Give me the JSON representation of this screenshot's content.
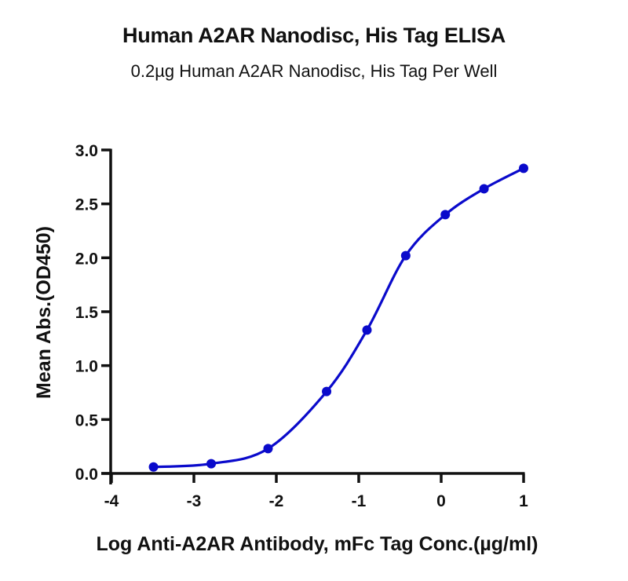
{
  "header": {
    "title": "Human A2AR Nanodisc, His Tag ELISA",
    "subtitle": "0.2µg Human A2AR Nanodisc, His Tag Per Well"
  },
  "colors": {
    "series": "#0A0ACB",
    "axis": "#111111"
  },
  "chart_data": {
    "type": "line",
    "title": "Human A2AR Nanodisc, His Tag ELISA",
    "subtitle": "0.2µg Human A2AR Nanodisc, His Tag Per Well",
    "xlabel": "Log Anti-A2AR Antibody, mFc Tag Conc.(µg/ml)",
    "ylabel": "Mean Abs.(OD450)",
    "xlim": [
      -4,
      1
    ],
    "ylim": [
      0,
      3.0
    ],
    "xticks": [
      -4,
      -3,
      -2,
      -1,
      0,
      1
    ],
    "xtick_labels": [
      "-4",
      "-3",
      "-2",
      "-1",
      "0",
      "1"
    ],
    "yticks": [
      0,
      0.5,
      1.0,
      1.5,
      2.0,
      2.5,
      3.0
    ],
    "ytick_labels": [
      "0.0",
      "0.5",
      "1.0",
      "1.5",
      "2.0",
      "2.5",
      "3.0"
    ],
    "grid": false,
    "legend": null,
    "series": [
      {
        "name": "Human A2AR Nanodisc, His Tag",
        "marker": "circle",
        "fit": "sigmoidal (4PL) curve",
        "x": [
          -3.49,
          -2.79,
          -2.1,
          -1.39,
          -0.9,
          -0.43,
          0.05,
          0.52,
          1.0
        ],
        "y": [
          0.06,
          0.09,
          0.23,
          0.76,
          1.33,
          2.02,
          2.4,
          2.64,
          2.83
        ]
      }
    ]
  }
}
